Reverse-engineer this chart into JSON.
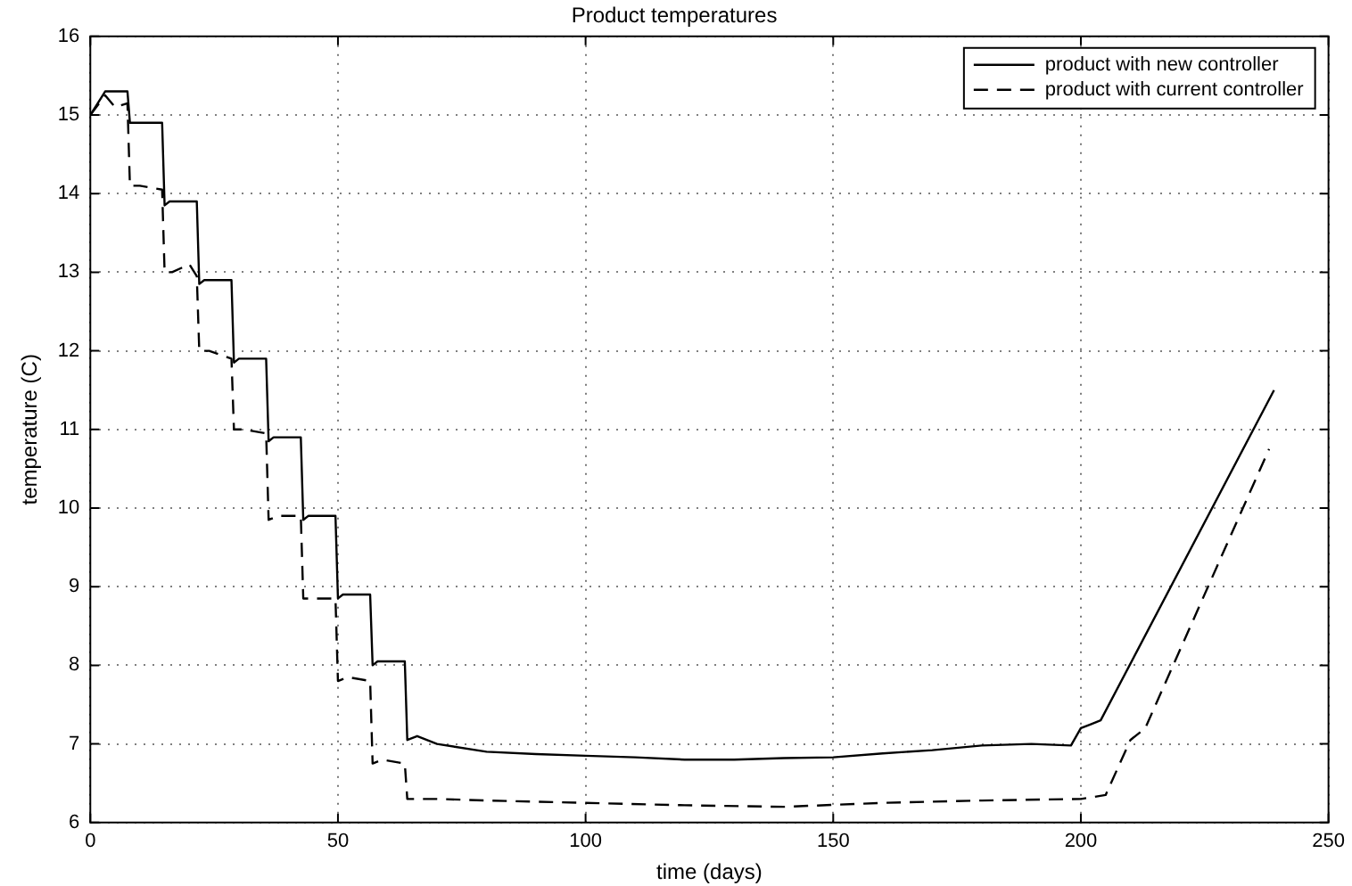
{
  "chart_data": {
    "type": "line",
    "title": "Product temperatures",
    "xlabel": "time (days)",
    "ylabel": "temperature (C)",
    "xlim": [
      0,
      250
    ],
    "xticks": [
      0,
      50,
      100,
      150,
      200,
      250
    ],
    "ylim": [
      6,
      16
    ],
    "yticks": [
      6,
      7,
      8,
      9,
      10,
      11,
      12,
      13,
      14,
      15,
      16
    ],
    "grid": true,
    "legend": "top right",
    "marker": "none",
    "series": [
      {
        "name": "product with new controller",
        "color": "#000000",
        "line_style": "solid",
        "x": [
          0,
          3,
          7.5,
          8,
          14.5,
          15,
          16,
          21.5,
          22,
          23,
          28.5,
          29,
          30,
          35.5,
          36,
          37,
          42.5,
          43,
          44,
          49.5,
          50,
          51,
          56.5,
          57,
          58,
          63.5,
          64,
          66,
          70,
          80,
          90,
          100,
          110,
          120,
          130,
          140,
          150,
          160,
          170,
          180,
          190,
          198,
          200,
          202,
          204,
          239
        ],
        "values": [
          15,
          15.3,
          15.3,
          14.9,
          14.9,
          13.85,
          13.9,
          13.9,
          12.85,
          12.9,
          12.9,
          11.85,
          11.9,
          11.9,
          10.85,
          10.9,
          10.9,
          9.85,
          9.9,
          9.9,
          8.85,
          8.9,
          8.9,
          8.0,
          8.05,
          8.05,
          7.05,
          7.1,
          7.0,
          6.9,
          6.87,
          6.85,
          6.83,
          6.8,
          6.8,
          6.82,
          6.83,
          6.88,
          6.92,
          6.98,
          7.0,
          6.98,
          7.2,
          7.25,
          7.3,
          11.5
        ]
      },
      {
        "name": "product with current controller",
        "color": "#000000",
        "line_style": "dashed",
        "x": [
          0,
          3,
          5,
          7.5,
          8,
          10,
          14.5,
          15,
          16.5,
          20,
          21.5,
          22,
          24,
          28.5,
          29,
          31,
          35.5,
          36,
          38,
          42.5,
          43,
          45,
          49.5,
          50,
          52,
          56.5,
          57,
          59,
          63.5,
          64,
          70,
          80,
          100,
          120,
          140,
          160,
          180,
          200,
          205,
          210,
          213,
          238
        ],
        "values": [
          15,
          15.25,
          15.1,
          15.15,
          14.1,
          14.1,
          14.05,
          13.0,
          13.0,
          13.1,
          12.95,
          12.0,
          12.0,
          11.9,
          11.0,
          11.0,
          10.95,
          9.85,
          9.9,
          9.9,
          8.85,
          8.85,
          8.85,
          7.8,
          7.85,
          7.8,
          6.75,
          6.8,
          6.75,
          6.3,
          6.3,
          6.28,
          6.25,
          6.22,
          6.2,
          6.25,
          6.28,
          6.3,
          6.35,
          7.05,
          7.2,
          10.75
        ]
      }
    ]
  }
}
